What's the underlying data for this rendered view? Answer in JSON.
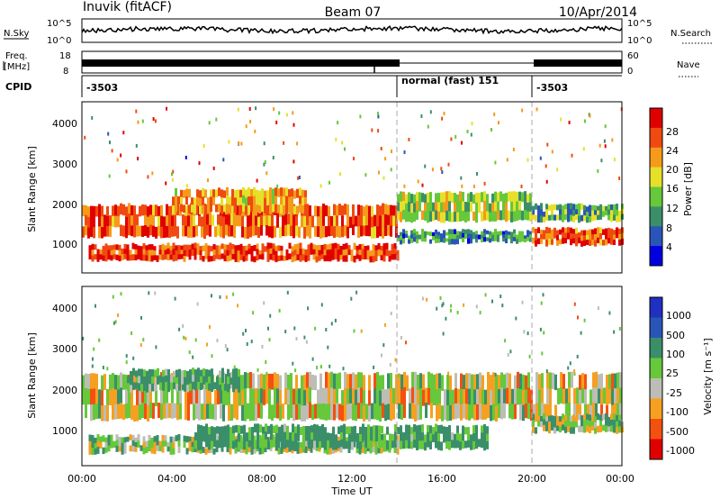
{
  "header": {
    "station": "Inuvik (fitACF)",
    "beam": "Beam 07",
    "date": "10/Apr/2014"
  },
  "strips": {
    "nsky_label": "N.Sky",
    "nsky_ticks": [
      "10^5",
      "10^0"
    ],
    "nsearch_label": "N.Search",
    "nsearch_ticks": [
      "10^5",
      "10^0"
    ],
    "freq_label": "Freq.",
    "freq_unit": "[MHz]",
    "freq_ticks": [
      "18",
      "8"
    ],
    "nave_label": "Nave",
    "nave_ticks": [
      "60",
      "0"
    ],
    "cpid_label": "CPID",
    "cpid_segments": [
      {
        "label": "-3503",
        "start_hour": 0,
        "end_hour": 14
      },
      {
        "label": "normal (fast) 151",
        "start_hour": 14,
        "end_hour": 20
      },
      {
        "label": "-3503",
        "start_hour": 20,
        "end_hour": 24
      }
    ]
  },
  "power_panel": {
    "ylabel": "Slant Range [km]",
    "yticks": [
      "4000",
      "3000",
      "2000",
      "1000"
    ],
    "colorbar_label": "Power [dB]",
    "colorbar_ticks": [
      "28",
      "24",
      "20",
      "16",
      "12",
      "8",
      "4"
    ]
  },
  "velocity_panel": {
    "ylabel": "Slant Range [km]",
    "yticks": [
      "4000",
      "3000",
      "2000",
      "1000"
    ],
    "colorbar_label": "Velocity  [m s⁻¹]",
    "colorbar_ticks": [
      "1000",
      "500",
      "100",
      "25",
      "-25",
      "-100",
      "-500",
      "-1000"
    ]
  },
  "x_axis": {
    "xlabel": "Time UT",
    "ticks": [
      "00:00",
      "04:00",
      "08:00",
      "12:00",
      "16:00",
      "20:00",
      "00:00"
    ]
  },
  "colors": {
    "power_scale": [
      "#0000e0",
      "#2a55b8",
      "#3a8f6a",
      "#66c83a",
      "#e6e02a",
      "#f59a1a",
      "#f04a10",
      "#e00000"
    ],
    "velocity_scale": [
      "#e00000",
      "#f45010",
      "#f5a020",
      "#bdbdb5",
      "#66c83a",
      "#3a8f6a",
      "#2a55b8",
      "#2030c0"
    ]
  },
  "chart_data": [
    {
      "type": "heatmap",
      "title": "Power",
      "xlabel": "Time UT",
      "ylabel": "Slant Range [km]",
      "xlim_hours": [
        0,
        24
      ],
      "ylim_km": [
        180,
        4500
      ],
      "colorbar_range_db": [
        0,
        30
      ],
      "bands": [
        {
          "start_hour": 0.3,
          "end_hour": 14.0,
          "range_km": [
            500,
            900
          ],
          "power_db": 26
        },
        {
          "start_hour": 0.0,
          "end_hour": 14.0,
          "range_km": [
            1100,
            1900
          ],
          "power_db": 24
        },
        {
          "start_hour": 4.0,
          "end_hour": 10.0,
          "range_km": [
            1700,
            2300
          ],
          "power_db": 20
        },
        {
          "start_hour": 14.0,
          "end_hour": 20.0,
          "range_km": [
            1500,
            2200
          ],
          "power_db": 14
        },
        {
          "start_hour": 14.0,
          "end_hour": 20.0,
          "range_km": [
            950,
            1250
          ],
          "power_db": 9
        },
        {
          "start_hour": 20.0,
          "end_hour": 24.0,
          "range_km": [
            900,
            1300
          ],
          "power_db": 24
        },
        {
          "start_hour": 20.0,
          "end_hour": 24.0,
          "range_km": [
            1500,
            1900
          ],
          "power_db": 12
        }
      ]
    },
    {
      "type": "heatmap",
      "title": "Velocity",
      "xlabel": "Time UT",
      "ylabel": "Slant Range [km]",
      "xlim_hours": [
        0,
        24
      ],
      "ylim_km": [
        180,
        4500
      ],
      "colorbar_range_ms": [
        -1000,
        1000
      ],
      "bands": [
        {
          "start_hour": 0.3,
          "end_hour": 14.0,
          "range_km": [
            500,
            900
          ],
          "velocity_ms": 50
        },
        {
          "start_hour": 5.0,
          "end_hour": 18.0,
          "range_km": [
            600,
            1150
          ],
          "velocity_ms": 150
        },
        {
          "start_hour": 0.0,
          "end_hour": 24.0,
          "range_km": [
            1300,
            2400
          ],
          "velocity_ms": 0
        },
        {
          "start_hour": 2.0,
          "end_hour": 7.0,
          "range_km": [
            2000,
            2500
          ],
          "velocity_ms": 120
        },
        {
          "start_hour": 20.0,
          "end_hour": 24.0,
          "range_km": [
            1000,
            1400
          ],
          "velocity_ms": 60
        }
      ]
    }
  ]
}
